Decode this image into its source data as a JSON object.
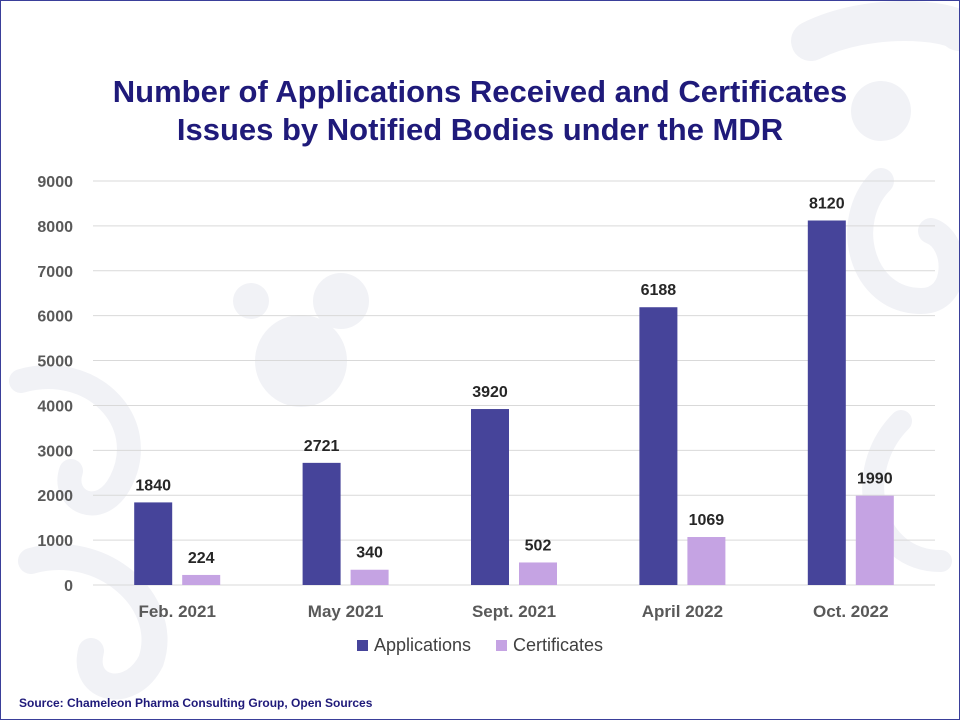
{
  "title_lines": [
    "Number of Applications Received and Certificates",
    "Issues by Notified Bodies under the MDR"
  ],
  "source": "Source: Chameleon Pharma Consulting Group, Open Sources",
  "colors": {
    "applications": "#46449a",
    "certificates": "#c5a3e3",
    "title": "#1f1a7a",
    "gridline": "#d9d9d9",
    "tick_label": "#595959",
    "data_label": "#262626"
  },
  "chart_data": {
    "type": "bar",
    "categories": [
      "Feb. 2021",
      "May 2021",
      "Sept. 2021",
      "April 2022",
      "Oct. 2022"
    ],
    "series": [
      {
        "name": "Applications",
        "values": [
          1840,
          2721,
          3920,
          6188,
          8120
        ]
      },
      {
        "name": "Certificates",
        "values": [
          224,
          340,
          502,
          1069,
          1990
        ]
      }
    ],
    "ylim": [
      0,
      9000
    ],
    "yticks": [
      0,
      1000,
      2000,
      3000,
      4000,
      5000,
      6000,
      7000,
      8000,
      9000
    ],
    "grid": true,
    "legend": "bottom",
    "data_labels": true
  }
}
